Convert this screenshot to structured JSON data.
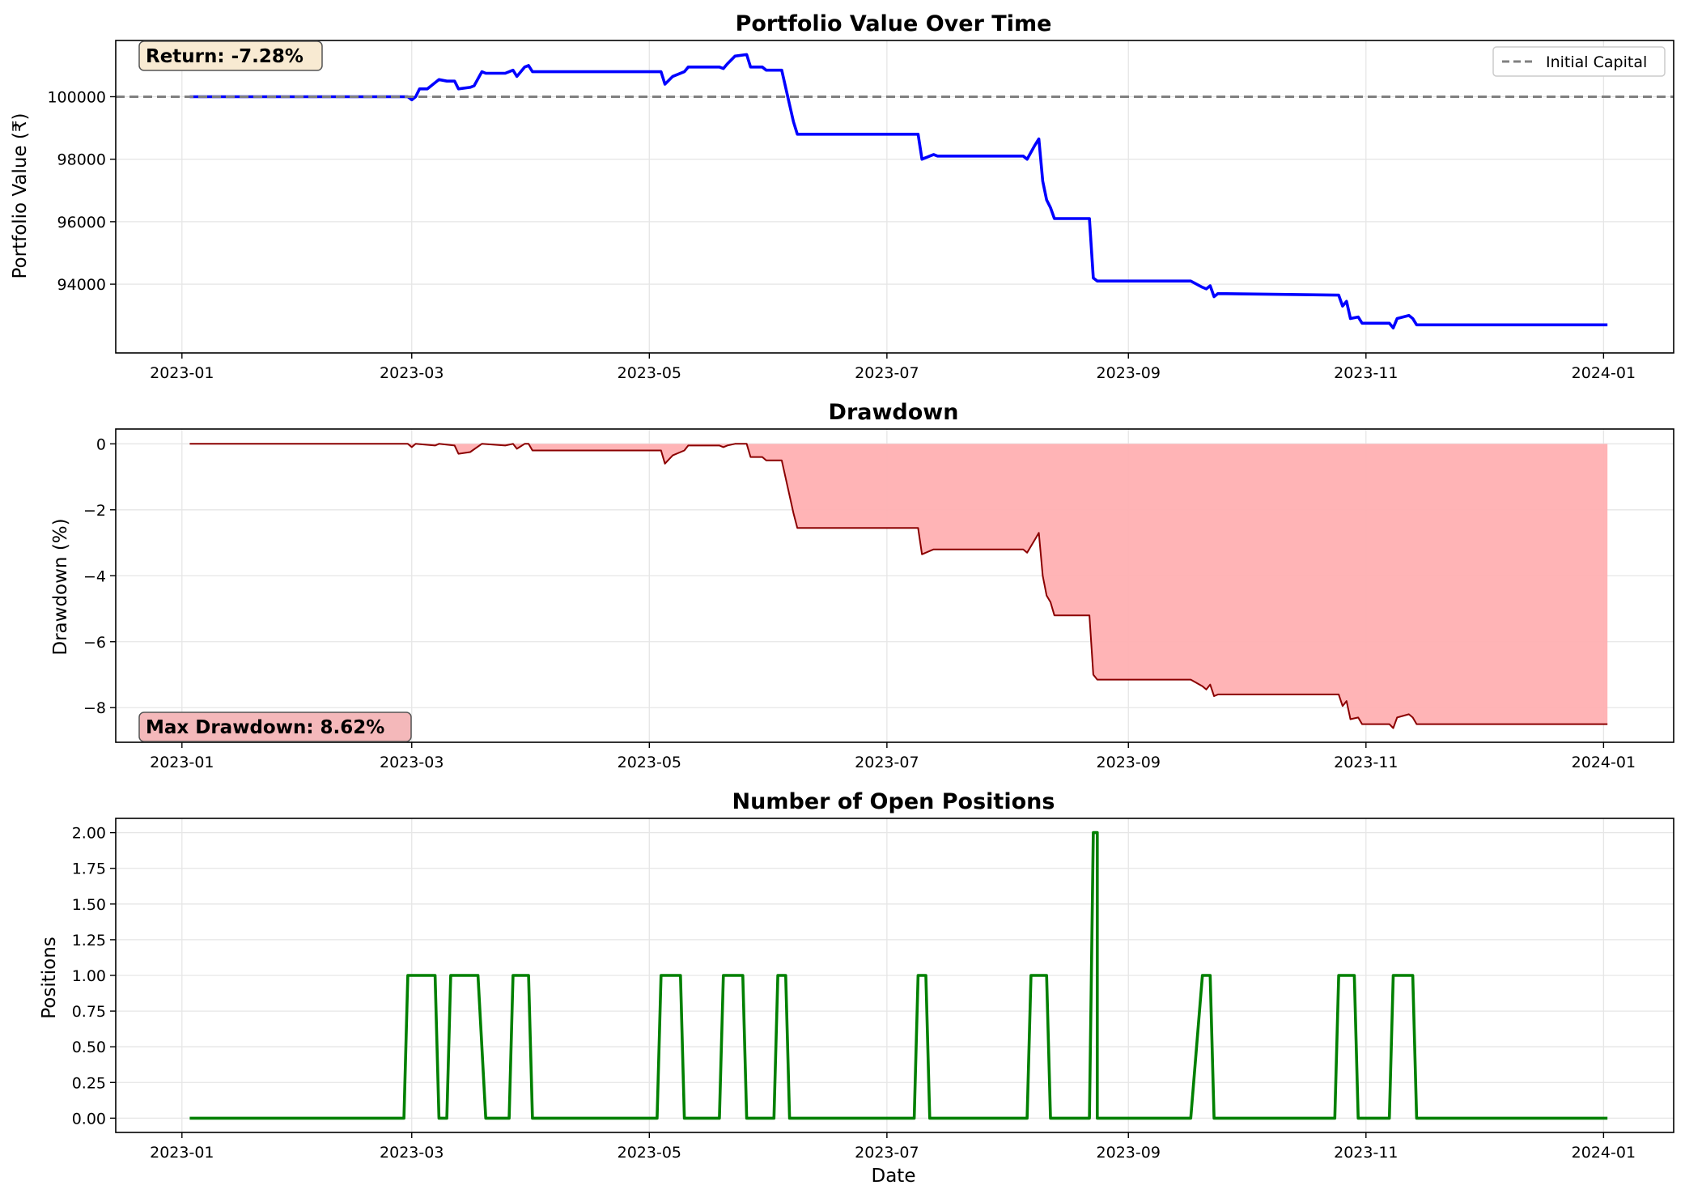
{
  "colors": {
    "portfolio_line": "#0000ff",
    "initial_capital_line": "#808080",
    "drawdown_line": "#8b0000",
    "drawdown_fill": "#ffb0b2",
    "positions_line": "#008000",
    "return_box_fill": "#f8ead2",
    "maxdd_box_fill": "#f4b8ba",
    "grid": "#e6e6e6"
  },
  "chart_data": [
    {
      "type": "line",
      "title": "Portfolio Value Over Time",
      "xlabel": "",
      "ylabel": "Portfolio Value (₹)",
      "x_ticks": [
        "2023-01",
        "2023-03",
        "2023-05",
        "2023-07",
        "2023-09",
        "2023-11",
        "2024-01"
      ],
      "y_ticks": [
        "94000",
        "96000",
        "98000",
        "100000"
      ],
      "xlim": [
        "2022-12-15",
        "2024-01-19"
      ],
      "ylim": [
        91800,
        101800
      ],
      "grid": true,
      "legend": {
        "placement": "top-right",
        "entries": [
          {
            "label": "Initial Capital",
            "style": "dashed",
            "color": "#808080"
          }
        ]
      },
      "reference_line": {
        "label": "Initial Capital",
        "y": 100000
      },
      "annotation": "Return: -7.28%",
      "series": [
        {
          "color": "#0000ff",
          "points": [
            [
              "2023-01-03",
              100000
            ],
            [
              "2023-02-28",
              100000
            ],
            [
              "2023-03-01",
              99900
            ],
            [
              "2023-03-02",
              100000
            ],
            [
              "2023-03-03",
              100250
            ],
            [
              "2023-03-05",
              100250
            ],
            [
              "2023-03-07",
              100450
            ],
            [
              "2023-03-08",
              100550
            ],
            [
              "2023-03-10",
              100500
            ],
            [
              "2023-03-12",
              100500
            ],
            [
              "2023-03-13",
              100250
            ],
            [
              "2023-03-16",
              100300
            ],
            [
              "2023-03-17",
              100350
            ],
            [
              "2023-03-19",
              100800
            ],
            [
              "2023-03-20",
              100750
            ],
            [
              "2023-03-25",
              100750
            ],
            [
              "2023-03-27",
              100850
            ],
            [
              "2023-03-28",
              100650
            ],
            [
              "2023-03-30",
              100950
            ],
            [
              "2023-03-31",
              101000
            ],
            [
              "2023-04-01",
              100800
            ],
            [
              "2023-05-04",
              100800
            ],
            [
              "2023-05-05",
              100400
            ],
            [
              "2023-05-07",
              100650
            ],
            [
              "2023-05-10",
              100800
            ],
            [
              "2023-05-11",
              100950
            ],
            [
              "2023-05-19",
              100950
            ],
            [
              "2023-05-20",
              100900
            ],
            [
              "2023-05-21",
              101050
            ],
            [
              "2023-05-23",
              101300
            ],
            [
              "2023-05-26",
              101350
            ],
            [
              "2023-05-27",
              100950
            ],
            [
              "2023-05-30",
              100950
            ],
            [
              "2023-05-31",
              100850
            ],
            [
              "2023-06-04",
              100850
            ],
            [
              "2023-06-07",
              99200
            ],
            [
              "2023-06-08",
              98800
            ],
            [
              "2023-07-09",
              98800
            ],
            [
              "2023-07-10",
              98000
            ],
            [
              "2023-07-12",
              98100
            ],
            [
              "2023-07-13",
              98150
            ],
            [
              "2023-07-14",
              98100
            ],
            [
              "2023-08-05",
              98100
            ],
            [
              "2023-08-06",
              98000
            ],
            [
              "2023-08-08",
              98450
            ],
            [
              "2023-08-09",
              98650
            ],
            [
              "2023-08-10",
              97300
            ],
            [
              "2023-08-11",
              96700
            ],
            [
              "2023-08-12",
              96450
            ],
            [
              "2023-08-13",
              96100
            ],
            [
              "2023-08-22",
              96100
            ],
            [
              "2023-08-23",
              94200
            ],
            [
              "2023-08-24",
              94100
            ],
            [
              "2023-09-17",
              94100
            ],
            [
              "2023-09-20",
              93900
            ],
            [
              "2023-09-21",
              93850
            ],
            [
              "2023-09-22",
              93950
            ],
            [
              "2023-09-23",
              93600
            ],
            [
              "2023-09-24",
              93700
            ],
            [
              "2023-10-25",
              93650
            ],
            [
              "2023-10-26",
              93300
            ],
            [
              "2023-10-27",
              93450
            ],
            [
              "2023-10-28",
              92900
            ],
            [
              "2023-10-30",
              92950
            ],
            [
              "2023-10-31",
              92750
            ],
            [
              "2023-11-07",
              92750
            ],
            [
              "2023-11-08",
              92600
            ],
            [
              "2023-11-09",
              92900
            ],
            [
              "2023-11-12",
              93000
            ],
            [
              "2023-11-13",
              92900
            ],
            [
              "2023-11-14",
              92700
            ],
            [
              "2024-01-02",
              92700
            ]
          ]
        }
      ]
    },
    {
      "type": "area",
      "title": "Drawdown",
      "xlabel": "",
      "ylabel": "Drawdown (%)",
      "x_ticks": [
        "2023-01",
        "2023-03",
        "2023-05",
        "2023-07",
        "2023-09",
        "2023-11",
        "2024-01"
      ],
      "y_ticks": [
        "0",
        "−2",
        "−4",
        "−6",
        "−8"
      ],
      "xlim": [
        "2022-12-15",
        "2024-01-19"
      ],
      "ylim": [
        -9.05,
        0.45
      ],
      "grid": true,
      "annotation": "Max Drawdown: 8.62%",
      "series": [
        {
          "color": "#8b0000",
          "fill": "#ffb0b2",
          "points": [
            [
              "2023-01-03",
              0
            ],
            [
              "2023-02-28",
              0
            ],
            [
              "2023-03-01",
              -0.1
            ],
            [
              "2023-03-02",
              0
            ],
            [
              "2023-03-07",
              -0.05
            ],
            [
              "2023-03-08",
              0
            ],
            [
              "2023-03-12",
              -0.05
            ],
            [
              "2023-03-13",
              -0.3
            ],
            [
              "2023-03-16",
              -0.25
            ],
            [
              "2023-03-19",
              0
            ],
            [
              "2023-03-25",
              -0.05
            ],
            [
              "2023-03-27",
              0
            ],
            [
              "2023-03-28",
              -0.15
            ],
            [
              "2023-03-30",
              0
            ],
            [
              "2023-03-31",
              0
            ],
            [
              "2023-04-01",
              -0.2
            ],
            [
              "2023-05-04",
              -0.2
            ],
            [
              "2023-05-05",
              -0.6
            ],
            [
              "2023-05-07",
              -0.35
            ],
            [
              "2023-05-10",
              -0.2
            ],
            [
              "2023-05-11",
              -0.05
            ],
            [
              "2023-05-19",
              -0.05
            ],
            [
              "2023-05-20",
              -0.1
            ],
            [
              "2023-05-21",
              -0.05
            ],
            [
              "2023-05-23",
              0
            ],
            [
              "2023-05-26",
              0
            ],
            [
              "2023-05-27",
              -0.4
            ],
            [
              "2023-05-30",
              -0.4
            ],
            [
              "2023-05-31",
              -0.5
            ],
            [
              "2023-06-04",
              -0.5
            ],
            [
              "2023-06-07",
              -2.1
            ],
            [
              "2023-06-08",
              -2.55
            ],
            [
              "2023-07-09",
              -2.55
            ],
            [
              "2023-07-10",
              -3.35
            ],
            [
              "2023-07-12",
              -3.25
            ],
            [
              "2023-07-13",
              -3.2
            ],
            [
              "2023-08-05",
              -3.2
            ],
            [
              "2023-08-06",
              -3.3
            ],
            [
              "2023-08-08",
              -2.9
            ],
            [
              "2023-08-09",
              -2.7
            ],
            [
              "2023-08-10",
              -4.0
            ],
            [
              "2023-08-11",
              -4.6
            ],
            [
              "2023-08-12",
              -4.8
            ],
            [
              "2023-08-13",
              -5.2
            ],
            [
              "2023-08-22",
              -5.2
            ],
            [
              "2023-08-23",
              -7.0
            ],
            [
              "2023-08-24",
              -7.15
            ],
            [
              "2023-09-17",
              -7.15
            ],
            [
              "2023-09-20",
              -7.35
            ],
            [
              "2023-09-21",
              -7.45
            ],
            [
              "2023-09-22",
              -7.3
            ],
            [
              "2023-09-23",
              -7.65
            ],
            [
              "2023-09-24",
              -7.6
            ],
            [
              "2023-10-25",
              -7.6
            ],
            [
              "2023-10-26",
              -7.95
            ],
            [
              "2023-10-27",
              -7.8
            ],
            [
              "2023-10-28",
              -8.35
            ],
            [
              "2023-10-30",
              -8.3
            ],
            [
              "2023-10-31",
              -8.5
            ],
            [
              "2023-11-07",
              -8.5
            ],
            [
              "2023-11-08",
              -8.62
            ],
            [
              "2023-11-09",
              -8.3
            ],
            [
              "2023-11-12",
              -8.2
            ],
            [
              "2023-11-13",
              -8.3
            ],
            [
              "2023-11-14",
              -8.5
            ],
            [
              "2024-01-02",
              -8.5
            ]
          ]
        }
      ]
    },
    {
      "type": "line",
      "title": "Number of Open Positions",
      "xlabel": "Date",
      "ylabel": "Positions",
      "x_ticks": [
        "2023-01",
        "2023-03",
        "2023-05",
        "2023-07",
        "2023-09",
        "2023-11",
        "2024-01"
      ],
      "y_ticks": [
        "0.00",
        "0.25",
        "0.50",
        "0.75",
        "1.00",
        "1.25",
        "1.50",
        "1.75",
        "2.00"
      ],
      "xlim": [
        "2022-12-15",
        "2024-01-19"
      ],
      "ylim": [
        -0.1,
        2.1
      ],
      "grid": true,
      "series": [
        {
          "color": "#008000",
          "points": [
            [
              "2023-01-03",
              0
            ],
            [
              "2023-02-27",
              0
            ],
            [
              "2023-02-28",
              1
            ],
            [
              "2023-03-07",
              1
            ],
            [
              "2023-03-08",
              0
            ],
            [
              "2023-03-10",
              0
            ],
            [
              "2023-03-11",
              1
            ],
            [
              "2023-03-18",
              1
            ],
            [
              "2023-03-20",
              0
            ],
            [
              "2023-03-26",
              0
            ],
            [
              "2023-03-27",
              1
            ],
            [
              "2023-03-31",
              1
            ],
            [
              "2023-04-01",
              0
            ],
            [
              "2023-05-03",
              0
            ],
            [
              "2023-05-04",
              1
            ],
            [
              "2023-05-09",
              1
            ],
            [
              "2023-05-10",
              0
            ],
            [
              "2023-05-19",
              0
            ],
            [
              "2023-05-20",
              1
            ],
            [
              "2023-05-25",
              1
            ],
            [
              "2023-05-26",
              0
            ],
            [
              "2023-06-02",
              0
            ],
            [
              "2023-06-03",
              1
            ],
            [
              "2023-06-05",
              1
            ],
            [
              "2023-06-06",
              0
            ],
            [
              "2023-07-08",
              0
            ],
            [
              "2023-07-09",
              1
            ],
            [
              "2023-07-11",
              1
            ],
            [
              "2023-07-12",
              0
            ],
            [
              "2023-08-06",
              0
            ],
            [
              "2023-08-07",
              1
            ],
            [
              "2023-08-11",
              1
            ],
            [
              "2023-08-12",
              0
            ],
            [
              "2023-08-22",
              0
            ],
            [
              "2023-08-23",
              2
            ],
            [
              "2023-08-24",
              2
            ],
            [
              "2023-08-24",
              0
            ],
            [
              "2023-09-17",
              0
            ],
            [
              "2023-09-20",
              1
            ],
            [
              "2023-09-22",
              1
            ],
            [
              "2023-09-23",
              0
            ],
            [
              "2023-10-24",
              0
            ],
            [
              "2023-10-25",
              1
            ],
            [
              "2023-10-29",
              1
            ],
            [
              "2023-10-30",
              0
            ],
            [
              "2023-11-07",
              0
            ],
            [
              "2023-11-08",
              1
            ],
            [
              "2023-11-13",
              1
            ],
            [
              "2023-11-14",
              0
            ],
            [
              "2024-01-02",
              0
            ]
          ]
        }
      ]
    }
  ]
}
